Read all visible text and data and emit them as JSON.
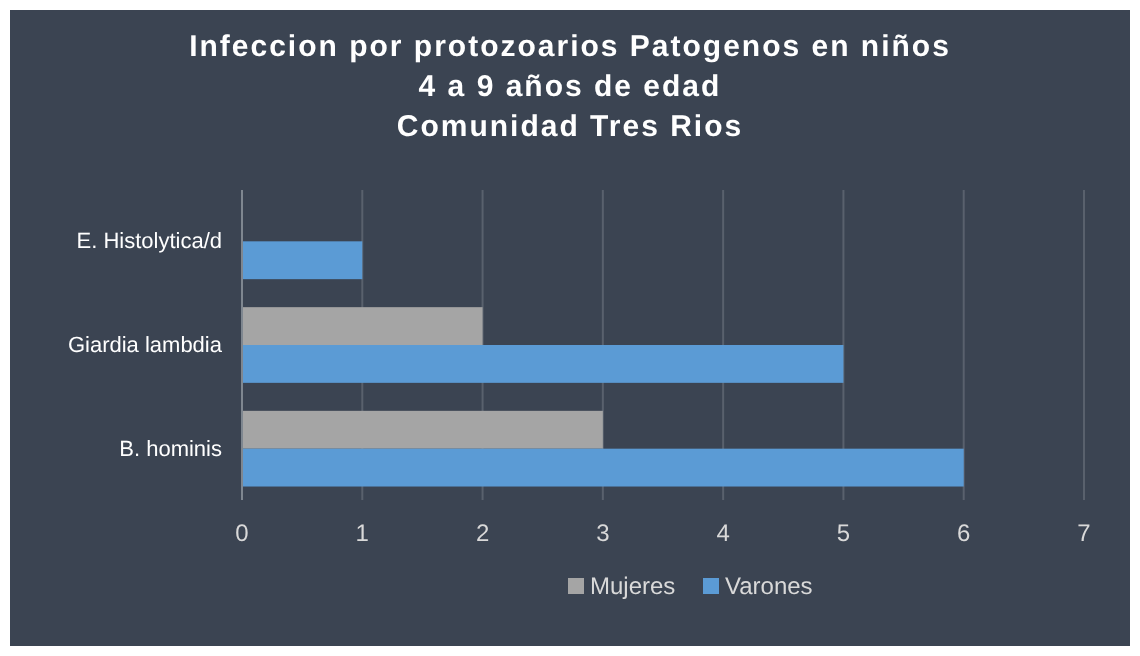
{
  "chart_data": {
    "type": "bar",
    "orientation": "horizontal",
    "title": "Infeccion por protozoarios Patogenos en niños\n4 a 9 años de edad\nComunidad Tres Rios",
    "categories": [
      "E. Histolytica/d",
      "Giardia lambdia",
      "B. hominis"
    ],
    "series": [
      {
        "name": "Mujeres",
        "color": "#a5a5a5",
        "values": [
          null,
          2,
          3
        ]
      },
      {
        "name": "Varones",
        "color": "#5b9bd5",
        "values": [
          1,
          5,
          6
        ]
      }
    ],
    "xlim": [
      0,
      7
    ],
    "xticks": [
      0,
      1,
      2,
      3,
      4,
      5,
      6,
      7
    ],
    "grid": "x",
    "legend": "bottom"
  }
}
